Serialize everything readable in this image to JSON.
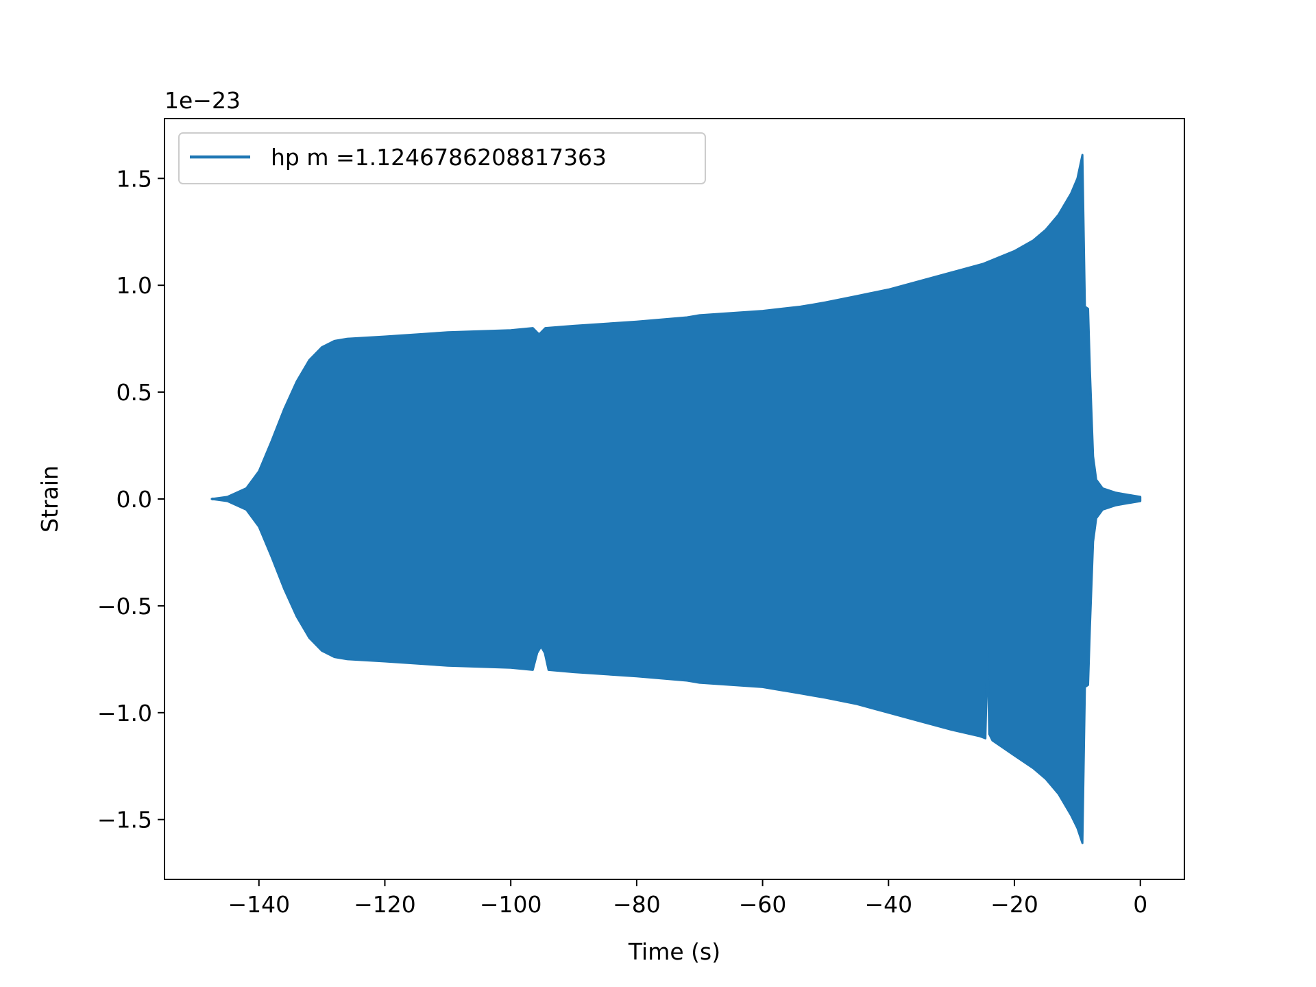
{
  "chart_data": {
    "type": "line",
    "title": "",
    "xlabel": "Time (s)",
    "ylabel": "Strain",
    "y_offset_label": "1e−23",
    "y_scale_exponent": -23,
    "xlim": [
      -155,
      7
    ],
    "ylim": [
      -1.78,
      1.78
    ],
    "x_ticks": [
      -140,
      -120,
      -100,
      -80,
      -60,
      -40,
      -20,
      0
    ],
    "x_tick_labels": [
      "−140",
      "−120",
      "−100",
      "−80",
      "−60",
      "−40",
      "−20",
      "0"
    ],
    "y_ticks": [
      -1.5,
      -1.0,
      -0.5,
      0.0,
      0.5,
      1.0,
      1.5
    ],
    "y_tick_labels": [
      "−1.5",
      "−1.0",
      "−0.5",
      "0.0",
      "0.5",
      "1.0",
      "1.5"
    ],
    "grid": false,
    "legend_position": "upper-left",
    "series": [
      {
        "name": "hp m =1.1246786208817363",
        "color": "#1f77b4",
        "style": "dense oscillation (filled envelope)",
        "upper_envelope": [
          [
            -147.5,
            0.0
          ],
          [
            -145,
            0.01
          ],
          [
            -142,
            0.05
          ],
          [
            -140,
            0.13
          ],
          [
            -138,
            0.27
          ],
          [
            -136,
            0.42
          ],
          [
            -134,
            0.55
          ],
          [
            -132,
            0.65
          ],
          [
            -130,
            0.71
          ],
          [
            -128,
            0.74
          ],
          [
            -126,
            0.75
          ],
          [
            -120,
            0.76
          ],
          [
            -110,
            0.78
          ],
          [
            -100,
            0.79
          ],
          [
            -96.5,
            0.8
          ],
          [
            -95.5,
            0.77
          ],
          [
            -94.5,
            0.8
          ],
          [
            -90,
            0.81
          ],
          [
            -80,
            0.83
          ],
          [
            -72,
            0.85
          ],
          [
            -70,
            0.86
          ],
          [
            -60,
            0.88
          ],
          [
            -54,
            0.9
          ],
          [
            -52,
            0.91
          ],
          [
            -50,
            0.92
          ],
          [
            -45,
            0.95
          ],
          [
            -40,
            0.98
          ],
          [
            -35,
            1.02
          ],
          [
            -30,
            1.06
          ],
          [
            -25,
            1.1
          ],
          [
            -20,
            1.16
          ],
          [
            -17,
            1.21
          ],
          [
            -15,
            1.26
          ],
          [
            -13,
            1.33
          ],
          [
            -11,
            1.43
          ],
          [
            -10,
            1.5
          ],
          [
            -9.2,
            1.61
          ],
          [
            -8.8,
            0.9
          ],
          [
            -8.3,
            0.89
          ],
          [
            -8,
            0.6
          ],
          [
            -7.5,
            0.2
          ],
          [
            -7,
            0.09
          ],
          [
            -6,
            0.05
          ],
          [
            -4,
            0.03
          ],
          [
            -2,
            0.02
          ],
          [
            0,
            0.01
          ]
        ],
        "lower_envelope": [
          [
            -147.5,
            0.0
          ],
          [
            -145,
            -0.01
          ],
          [
            -142,
            -0.05
          ],
          [
            -140,
            -0.13
          ],
          [
            -138,
            -0.27
          ],
          [
            -136,
            -0.42
          ],
          [
            -134,
            -0.55
          ],
          [
            -132,
            -0.65
          ],
          [
            -130,
            -0.71
          ],
          [
            -128,
            -0.74
          ],
          [
            -126,
            -0.75
          ],
          [
            -120,
            -0.76
          ],
          [
            -110,
            -0.78
          ],
          [
            -100,
            -0.79
          ],
          [
            -96.5,
            -0.8
          ],
          [
            -95.8,
            -0.72
          ],
          [
            -95.2,
            -0.69
          ],
          [
            -94.6,
            -0.72
          ],
          [
            -94,
            -0.8
          ],
          [
            -90,
            -0.81
          ],
          [
            -80,
            -0.83
          ],
          [
            -72,
            -0.85
          ],
          [
            -70,
            -0.86
          ],
          [
            -60,
            -0.88
          ],
          [
            -54,
            -0.91
          ],
          [
            -52,
            -0.92
          ],
          [
            -50,
            -0.93
          ],
          [
            -45,
            -0.96
          ],
          [
            -40,
            -1.0
          ],
          [
            -35,
            -1.04
          ],
          [
            -30,
            -1.08
          ],
          [
            -25.5,
            -1.11
          ],
          [
            -24.6,
            -1.12
          ],
          [
            -24.3,
            -0.71
          ],
          [
            -24.0,
            -1.1
          ],
          [
            -23.5,
            -1.13
          ],
          [
            -20,
            -1.2
          ],
          [
            -17,
            -1.26
          ],
          [
            -15,
            -1.31
          ],
          [
            -13,
            -1.38
          ],
          [
            -11,
            -1.48
          ],
          [
            -10,
            -1.54
          ],
          [
            -9.2,
            -1.61
          ],
          [
            -8.8,
            -0.88
          ],
          [
            -8.3,
            -0.87
          ],
          [
            -8,
            -0.6
          ],
          [
            -7.5,
            -0.2
          ],
          [
            -7,
            -0.09
          ],
          [
            -6,
            -0.05
          ],
          [
            -4,
            -0.03
          ],
          [
            -2,
            -0.02
          ],
          [
            0,
            -0.01
          ]
        ]
      }
    ]
  }
}
